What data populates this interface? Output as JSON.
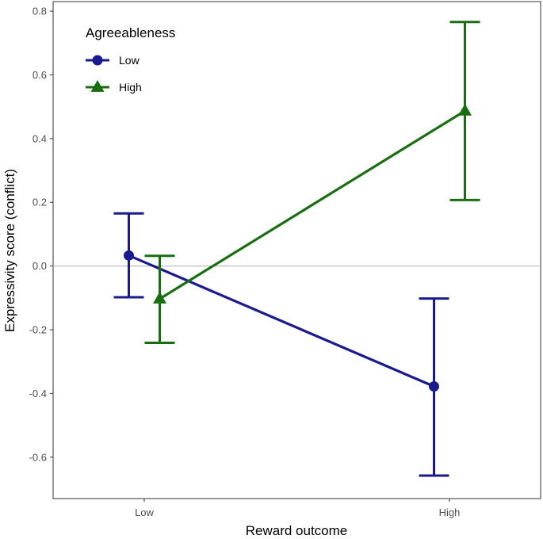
{
  "chart_data": {
    "type": "line",
    "xlabel": "Reward outcome",
    "ylabel": "Expressivity score (conflict)",
    "categories": [
      "Low",
      "High"
    ],
    "ylim": [
      -0.73,
      0.83
    ],
    "yticks": [
      0.8,
      0.6,
      0.4,
      0.2,
      0.0,
      -0.2,
      -0.4,
      -0.6
    ],
    "ytick_labels": [
      "0.8",
      "0.6",
      "0.4",
      "0.2",
      "0.0",
      "-0.2",
      "-0.4",
      "-0.6"
    ],
    "reference_line": 0,
    "grid": false,
    "legend": {
      "title": "Agreeableness",
      "placement": "top-left"
    },
    "series": [
      {
        "name": "Low",
        "marker": "circle",
        "color": "#1a1a8f",
        "values": [
          0.033,
          -0.378
        ],
        "ci_low": [
          -0.098,
          -0.658
        ],
        "ci_high": [
          0.165,
          -0.102
        ]
      },
      {
        "name": "High",
        "marker": "triangle",
        "color": "#1a6e12",
        "values": [
          -0.103,
          0.487
        ],
        "ci_low": [
          -0.241,
          0.207
        ],
        "ci_high": [
          0.032,
          0.766
        ]
      }
    ]
  }
}
